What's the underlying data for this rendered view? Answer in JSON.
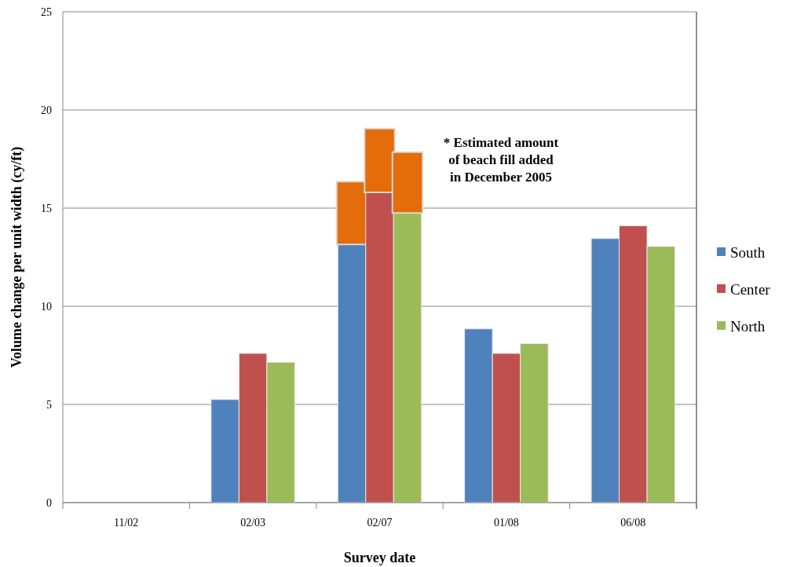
{
  "chart_data": {
    "type": "bar",
    "xlabel": "Survey date",
    "ylabel": "Volume change per unit width (cy/ft)",
    "categories": [
      "11/02",
      "02/03",
      "02/07",
      "01/08",
      "06/08"
    ],
    "series": [
      {
        "name": "South",
        "color": "#4f81bd",
        "values": [
          0,
          5.25,
          13.15,
          8.85,
          13.45
        ]
      },
      {
        "color": "#e46c0a",
        "base": [
          null,
          null,
          13.15,
          null,
          null
        ],
        "values": [
          null,
          null,
          3.2,
          null,
          null
        ]
      },
      {
        "name": "Center",
        "color": "#c0504d",
        "values": [
          0,
          7.6,
          15.8,
          7.6,
          14.1
        ]
      },
      {
        "color": "#e46c0a",
        "base": [
          null,
          null,
          15.8,
          null,
          null
        ],
        "values": [
          null,
          null,
          3.25,
          null,
          null
        ]
      },
      {
        "name": "North",
        "color": "#9bbb59",
        "values": [
          0,
          7.15,
          14.75,
          8.1,
          13.05
        ]
      },
      {
        "color": "#e46c0a",
        "base": [
          null,
          null,
          14.75,
          null,
          null
        ],
        "values": [
          null,
          null,
          3.1,
          null,
          null
        ]
      }
    ],
    "ylim": [
      0,
      25
    ],
    "yticks": [
      0,
      5,
      10,
      15,
      20,
      25
    ],
    "grid": "y",
    "legend": "right",
    "annotations": [
      "* Estimated amount of beach fill added in December 2005"
    ]
  }
}
